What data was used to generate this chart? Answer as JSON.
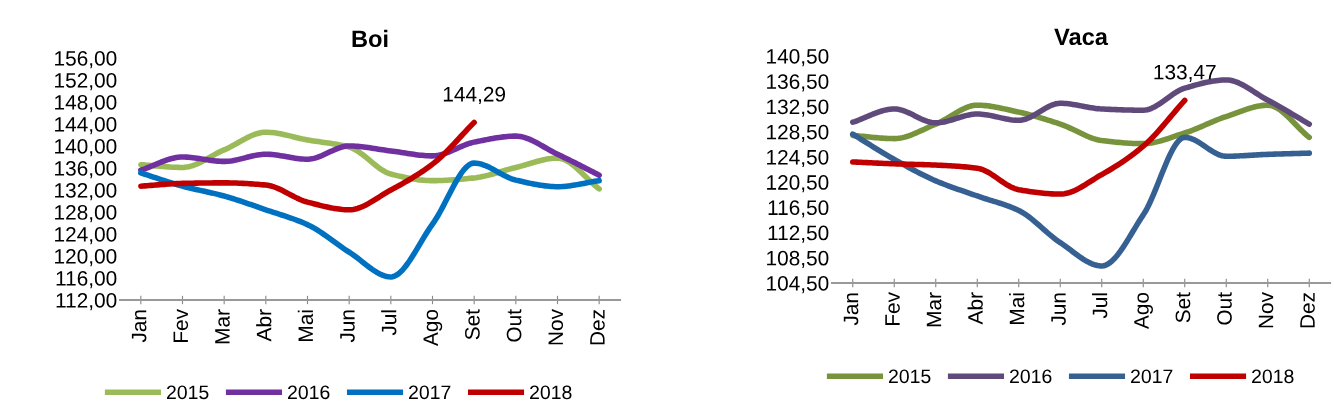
{
  "chart_data": [
    {
      "type": "line",
      "title": "Boi",
      "categories": [
        "Jan",
        "Fev",
        "Mar",
        "Abr",
        "Mai",
        "Jun",
        "Jul",
        "Ago",
        "Set",
        "Out",
        "Nov",
        "Dez"
      ],
      "series": [
        {
          "name": "2015",
          "color": "#9bbb59",
          "values": [
            136.6,
            136.1,
            139.3,
            142.5,
            141.1,
            139.8,
            134.9,
            133.7,
            134.2,
            136.1,
            137.8,
            132.2
          ]
        },
        {
          "name": "2016",
          "color": "#7030a0",
          "values": [
            135.6,
            138.0,
            137.2,
            138.5,
            137.6,
            140.0,
            139.1,
            138.2,
            140.7,
            141.8,
            138.5,
            134.7
          ]
        },
        {
          "name": "2017",
          "color": "#0070c0",
          "values": [
            135.1,
            132.7,
            130.9,
            128.4,
            125.7,
            120.7,
            116.2,
            125.8,
            136.9,
            133.8,
            132.6,
            133.7
          ]
        },
        {
          "name": "2018",
          "color": "#c00000",
          "values": [
            132.7,
            133.2,
            133.3,
            132.9,
            129.8,
            128.4,
            132.0,
            136.7,
            144.29,
            null,
            null,
            null
          ]
        }
      ],
      "ylim": [
        112,
        156
      ],
      "yticks": [
        {
          "value": 112,
          "label": "112,00"
        },
        {
          "value": 116,
          "label": "116,00"
        },
        {
          "value": 120,
          "label": "120,00"
        },
        {
          "value": 124,
          "label": "124,00"
        },
        {
          "value": 128,
          "label": "128,00"
        },
        {
          "value": 132,
          "label": "132,00"
        },
        {
          "value": 136,
          "label": "136,00"
        },
        {
          "value": 140,
          "label": "140,00"
        },
        {
          "value": 144,
          "label": "144,00"
        },
        {
          "value": 148,
          "label": "148,00"
        },
        {
          "value": 152,
          "label": "152,00"
        },
        {
          "value": 156,
          "label": "156,00"
        }
      ],
      "annotations": [
        {
          "text": "144,29",
          "x": "Set",
          "y": 144.29
        }
      ],
      "grid": false,
      "legend": "bottom",
      "marker": "none",
      "line_style": "solid"
    },
    {
      "type": "line",
      "title": "Vaca",
      "categories": [
        "Jan",
        "Fev",
        "Mar",
        "Abr",
        "Mai",
        "Jun",
        "Jul",
        "Ago",
        "Set",
        "Out",
        "Nov",
        "Dez"
      ],
      "series": [
        {
          "name": "2015",
          "color": "#77933c",
          "values": [
            127.9,
            127.4,
            129.7,
            132.7,
            131.6,
            129.7,
            127.1,
            126.6,
            128.3,
            130.9,
            132.7,
            127.6
          ]
        },
        {
          "name": "2016",
          "color": "#604a7b",
          "values": [
            130.0,
            132.1,
            129.9,
            131.3,
            130.3,
            133.0,
            132.1,
            131.9,
            135.4,
            136.7,
            133.5,
            129.7
          ]
        },
        {
          "name": "2017",
          "color": "#376092",
          "values": [
            128.1,
            124.1,
            120.7,
            118.3,
            116.0,
            110.9,
            107.2,
            115.3,
            127.6,
            124.6,
            124.9,
            125.1
          ]
        },
        {
          "name": "2018",
          "color": "#c00000",
          "values": [
            123.7,
            123.4,
            123.2,
            122.7,
            119.3,
            118.6,
            121.7,
            126.2,
            133.47,
            null,
            null,
            null
          ]
        }
      ],
      "ylim": [
        104.5,
        140.5
      ],
      "yticks": [
        {
          "value": 104.5,
          "label": "104,50"
        },
        {
          "value": 108.5,
          "label": "108,50"
        },
        {
          "value": 112.5,
          "label": "112,50"
        },
        {
          "value": 116.5,
          "label": "116,50"
        },
        {
          "value": 120.5,
          "label": "120,50"
        },
        {
          "value": 124.5,
          "label": "124,50"
        },
        {
          "value": 128.5,
          "label": "128,50"
        },
        {
          "value": 132.5,
          "label": "132,50"
        },
        {
          "value": 136.5,
          "label": "136,50"
        },
        {
          "value": 140.5,
          "label": "140,50"
        }
      ],
      "annotations": [
        {
          "text": "133,47",
          "x": "Set",
          "y": 133.47
        }
      ],
      "grid": false,
      "legend": "bottom",
      "marker": "none",
      "line_style": "solid"
    }
  ]
}
